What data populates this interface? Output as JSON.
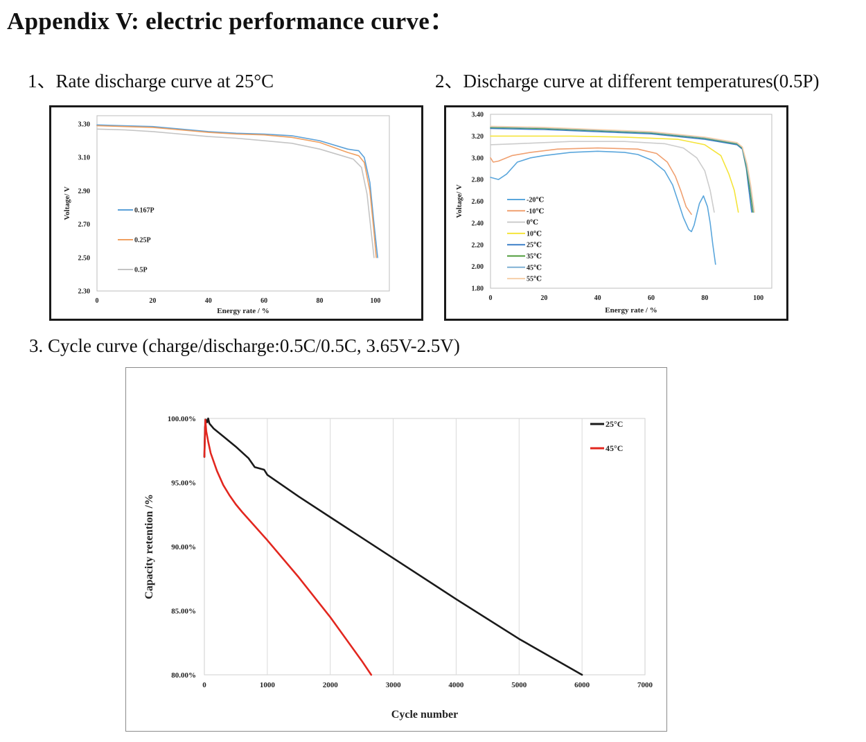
{
  "page": {
    "title": "Appendix V: electric performance curve："
  },
  "sections": {
    "s1": "1、Rate discharge curve at 25°C",
    "s2": "2、Discharge curve at different temperatures(0.5P)",
    "s3": "3. Cycle curve (charge/discharge:0.5C/0.5C, 3.65V-2.5V)"
  },
  "chart_data": [
    {
      "type": "line",
      "xlabel": "Energy rate / %",
      "ylabel": "Voltage/ V",
      "xlim": [
        0,
        105
      ],
      "ylim": [
        2.3,
        3.35
      ],
      "xticks": [
        "0",
        "20",
        "40",
        "60",
        "80",
        "100"
      ],
      "xtick_values": [
        0,
        20,
        40,
        60,
        80,
        100
      ],
      "yticks": [
        "2.30",
        "2.50",
        "2.70",
        "2.90",
        "3.10",
        "3.30"
      ],
      "ytick_values": [
        2.3,
        2.5,
        2.7,
        2.9,
        3.1,
        3.3
      ],
      "legend_position": "left-center",
      "series": [
        {
          "name": "0.167P",
          "color": "#5aa0d8",
          "points": [
            [
              0,
              3.295
            ],
            [
              10,
              3.29
            ],
            [
              20,
              3.285
            ],
            [
              30,
              3.27
            ],
            [
              40,
              3.255
            ],
            [
              50,
              3.245
            ],
            [
              60,
              3.24
            ],
            [
              70,
              3.23
            ],
            [
              80,
              3.2
            ],
            [
              90,
              3.15
            ],
            [
              94,
              3.14
            ],
            [
              96,
              3.1
            ],
            [
              98,
              2.95
            ],
            [
              99.5,
              2.7
            ],
            [
              100.8,
              2.5
            ]
          ]
        },
        {
          "name": "0.25P",
          "color": "#f0a060",
          "points": [
            [
              0,
              3.29
            ],
            [
              10,
              3.285
            ],
            [
              20,
              3.28
            ],
            [
              30,
              3.265
            ],
            [
              40,
              3.25
            ],
            [
              50,
              3.24
            ],
            [
              60,
              3.235
            ],
            [
              70,
              3.22
            ],
            [
              80,
              3.19
            ],
            [
              90,
              3.13
            ],
            [
              94,
              3.11
            ],
            [
              96,
              3.07
            ],
            [
              98,
              2.9
            ],
            [
              99.5,
              2.65
            ],
            [
              100.3,
              2.5
            ]
          ]
        },
        {
          "name": "0.5P",
          "color": "#c4c4c4",
          "points": [
            [
              0,
              3.27
            ],
            [
              10,
              3.265
            ],
            [
              20,
              3.255
            ],
            [
              30,
              3.24
            ],
            [
              40,
              3.225
            ],
            [
              50,
              3.215
            ],
            [
              60,
              3.2
            ],
            [
              70,
              3.185
            ],
            [
              80,
              3.15
            ],
            [
              88,
              3.11
            ],
            [
              92,
              3.09
            ],
            [
              95,
              3.04
            ],
            [
              97,
              2.88
            ],
            [
              98.5,
              2.65
            ],
            [
              99.5,
              2.5
            ]
          ]
        }
      ]
    },
    {
      "type": "line",
      "xlabel": "Energy rate / %",
      "ylabel": "Voltage/ V",
      "xlim": [
        0,
        105
      ],
      "ylim": [
        1.8,
        3.4
      ],
      "xticks": [
        "0",
        "20",
        "40",
        "60",
        "80",
        "100"
      ],
      "xtick_values": [
        0,
        20,
        40,
        60,
        80,
        100
      ],
      "yticks": [
        "1.80",
        "2.00",
        "2.20",
        "2.40",
        "2.60",
        "2.80",
        "3.00",
        "3.20",
        "3.40"
      ],
      "ytick_values": [
        1.8,
        2.0,
        2.2,
        2.4,
        2.6,
        2.8,
        3.0,
        3.2,
        3.4
      ],
      "legend_position": "left-bottom",
      "series": [
        {
          "name": "-20℃",
          "color": "#5aa6dc",
          "points": [
            [
              0,
              2.82
            ],
            [
              3,
              2.8
            ],
            [
              6,
              2.85
            ],
            [
              10,
              2.96
            ],
            [
              15,
              3.0
            ],
            [
              20,
              3.02
            ],
            [
              30,
              3.05
            ],
            [
              40,
              3.06
            ],
            [
              50,
              3.05
            ],
            [
              55,
              3.03
            ],
            [
              60,
              2.98
            ],
            [
              65,
              2.88
            ],
            [
              68,
              2.75
            ],
            [
              70,
              2.6
            ],
            [
              72,
              2.45
            ],
            [
              74,
              2.34
            ],
            [
              75,
              2.32
            ],
            [
              76,
              2.38
            ],
            [
              77,
              2.48
            ],
            [
              78,
              2.58
            ],
            [
              79.5,
              2.65
            ],
            [
              81,
              2.55
            ],
            [
              82,
              2.4
            ],
            [
              83,
              2.2
            ],
            [
              84,
              2.02
            ]
          ]
        },
        {
          "name": "-10℃",
          "color": "#f0a070",
          "points": [
            [
              0,
              3.0
            ],
            [
              1,
              2.96
            ],
            [
              3,
              2.97
            ],
            [
              8,
              3.02
            ],
            [
              15,
              3.05
            ],
            [
              25,
              3.08
            ],
            [
              40,
              3.09
            ],
            [
              55,
              3.08
            ],
            [
              62,
              3.04
            ],
            [
              66,
              2.96
            ],
            [
              69,
              2.83
            ],
            [
              71,
              2.7
            ],
            [
              73,
              2.55
            ],
            [
              75,
              2.48
            ]
          ]
        },
        {
          "name": "0℃",
          "color": "#cccccc",
          "points": [
            [
              0,
              3.12
            ],
            [
              10,
              3.13
            ],
            [
              30,
              3.15
            ],
            [
              50,
              3.15
            ],
            [
              65,
              3.13
            ],
            [
              72,
              3.09
            ],
            [
              77,
              3.0
            ],
            [
              80,
              2.88
            ],
            [
              82,
              2.7
            ],
            [
              83.5,
              2.5
            ]
          ]
        },
        {
          "name": "10℃",
          "color": "#f5e43a",
          "points": [
            [
              0,
              3.2
            ],
            [
              10,
              3.2
            ],
            [
              30,
              3.2
            ],
            [
              50,
              3.19
            ],
            [
              70,
              3.17
            ],
            [
              80,
              3.12
            ],
            [
              86,
              3.02
            ],
            [
              89,
              2.85
            ],
            [
              91,
              2.7
            ],
            [
              92.5,
              2.5
            ]
          ]
        },
        {
          "name": "25℃",
          "color": "#3b7fc8",
          "points": [
            [
              0,
              3.27
            ],
            [
              20,
              3.26
            ],
            [
              40,
              3.24
            ],
            [
              60,
              3.22
            ],
            [
              80,
              3.17
            ],
            [
              92,
              3.12
            ],
            [
              94,
              3.08
            ],
            [
              95.5,
              2.9
            ],
            [
              96.5,
              2.7
            ],
            [
              97.5,
              2.5
            ]
          ]
        },
        {
          "name": "35℃",
          "color": "#4e9b3a",
          "points": [
            [
              0,
              3.28
            ],
            [
              20,
              3.27
            ],
            [
              40,
              3.25
            ],
            [
              60,
              3.23
            ],
            [
              80,
              3.18
            ],
            [
              92,
              3.13
            ],
            [
              94,
              3.09
            ],
            [
              95.5,
              2.92
            ],
            [
              96.8,
              2.72
            ],
            [
              98,
              2.5
            ]
          ]
        },
        {
          "name": "45℃",
          "color": "#7fb0d4",
          "points": [
            [
              0,
              3.285
            ],
            [
              20,
              3.275
            ],
            [
              40,
              3.255
            ],
            [
              60,
              3.235
            ],
            [
              80,
              3.185
            ],
            [
              92,
              3.135
            ],
            [
              94,
              3.095
            ],
            [
              95.6,
              2.93
            ],
            [
              97,
              2.73
            ],
            [
              98.3,
              2.5
            ]
          ]
        },
        {
          "name": "55℃",
          "color": "#f6cfa8",
          "points": [
            [
              0,
              3.29
            ],
            [
              20,
              3.28
            ],
            [
              40,
              3.26
            ],
            [
              60,
              3.24
            ],
            [
              80,
              3.19
            ],
            [
              92,
              3.14
            ],
            [
              94,
              3.1
            ],
            [
              95.8,
              2.94
            ],
            [
              97.2,
              2.74
            ],
            [
              98.5,
              2.5
            ]
          ]
        }
      ]
    },
    {
      "type": "line",
      "xlabel": "Cycle number",
      "ylabel": "Capacity retention /%",
      "xlim": [
        0,
        7000
      ],
      "ylim": [
        80,
        100
      ],
      "xticks": [
        "0",
        "1000",
        "2000",
        "3000",
        "4000",
        "5000",
        "6000",
        "7000"
      ],
      "xtick_values": [
        0,
        1000,
        2000,
        3000,
        4000,
        5000,
        6000,
        7000
      ],
      "yticks": [
        "80.00%",
        "85.00%",
        "90.00%",
        "95.00%",
        "100.00%"
      ],
      "ytick_values": [
        80,
        85,
        90,
        95,
        100
      ],
      "legend_position": "top-right",
      "series": [
        {
          "name": "25°C",
          "color": "#1a1a1a",
          "points": [
            [
              0,
              97.0
            ],
            [
              10,
              99.3
            ],
            [
              25,
              99.9
            ],
            [
              45,
              99.7
            ],
            [
              60,
              100.0
            ],
            [
              80,
              99.6
            ],
            [
              150,
              99.2
            ],
            [
              300,
              98.6
            ],
            [
              500,
              97.8
            ],
            [
              700,
              96.9
            ],
            [
              800,
              96.2
            ],
            [
              950,
              96.0
            ],
            [
              1000,
              95.6
            ],
            [
              1500,
              93.9
            ],
            [
              2000,
              92.3
            ],
            [
              3000,
              89.1
            ],
            [
              4000,
              85.9
            ],
            [
              5000,
              82.8
            ],
            [
              6000,
              80.0
            ]
          ]
        },
        {
          "name": "45°C",
          "color": "#e2271f",
          "points": [
            [
              0,
              97.0
            ],
            [
              15,
              99.9
            ],
            [
              30,
              99.0
            ],
            [
              60,
              98.2
            ],
            [
              100,
              97.3
            ],
            [
              200,
              95.9
            ],
            [
              300,
              94.8
            ],
            [
              400,
              94.0
            ],
            [
              500,
              93.3
            ],
            [
              600,
              92.7
            ],
            [
              800,
              91.6
            ],
            [
              1000,
              90.5
            ],
            [
              1500,
              87.6
            ],
            [
              2000,
              84.5
            ],
            [
              2500,
              81.1
            ],
            [
              2650,
              80.0
            ]
          ]
        }
      ]
    }
  ]
}
